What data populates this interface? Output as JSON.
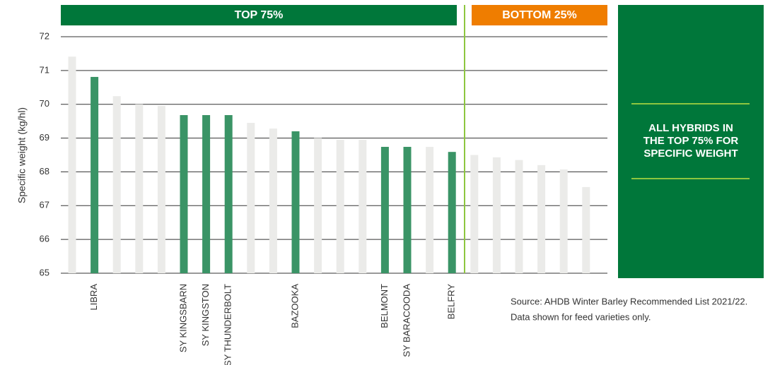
{
  "chart_data": {
    "type": "bar",
    "ylabel": "Specific weight (kg/hl)",
    "categories": [
      null,
      "LIBRA",
      null,
      null,
      null,
      "SY KINGSBARN",
      "SY KINGSTON",
      "SY THUNDERBOLT",
      null,
      null,
      "BAZOOKA",
      null,
      null,
      null,
      "BELMONT",
      "SY BARACOODA",
      null,
      "BELFRY",
      null,
      null,
      null,
      null,
      null,
      null
    ],
    "values": [
      71.41,
      70.81,
      70.24,
      70.0,
      69.95,
      69.68,
      69.68,
      69.68,
      69.45,
      69.28,
      69.2,
      69.0,
      68.95,
      68.95,
      68.74,
      68.74,
      68.74,
      68.59,
      68.5,
      68.43,
      68.35,
      68.2,
      68.07,
      67.55
    ],
    "colors": [
      "#ebebe9",
      "#3a9466",
      "#ebebe9",
      "#ebebe9",
      "#ebebe9",
      "#3a9466",
      "#3a9466",
      "#3a9466",
      "#ebebe9",
      "#ebebe9",
      "#3a9466",
      "#ebebe9",
      "#ebebe9",
      "#ebebe9",
      "#3a9466",
      "#3a9466",
      "#ebebe9",
      "#3a9466",
      "#ebebe9",
      "#ebebe9",
      "#ebebe9",
      "#ebebe9",
      "#ebebe9",
      "#ebebe9"
    ],
    "ylim": [
      65,
      72
    ],
    "yticks": [
      65,
      66,
      67,
      68,
      69,
      70,
      71,
      72
    ],
    "grid": true,
    "top_label": "TOP 75%",
    "bottom_label": "BOTTOM 25%",
    "panel_text": [
      "ALL HYBRIDS IN",
      "THE TOP 75% FOR",
      "SPECIFIC WEIGHT"
    ],
    "source": [
      "Source: AHDB Winter Barley Recommended List 2021/22.",
      "Data shown for feed varieties only."
    ]
  }
}
